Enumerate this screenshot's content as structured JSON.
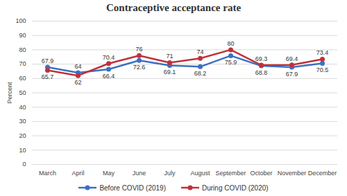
{
  "chart_data": {
    "type": "line",
    "title": "Contraceptive acceptance rate",
    "y_label": "Percent",
    "categories": [
      "March",
      "April",
      "May",
      "June",
      "July",
      "August",
      "September",
      "October",
      "November",
      "December"
    ],
    "series": [
      {
        "name": "Before COVID (2019)",
        "color": "#3b70c4",
        "marker": "circle",
        "values": [
          67.9,
          64,
          66.4,
          72.6,
          69.1,
          68.2,
          75.9,
          68.8,
          67.9,
          70.5
        ]
      },
      {
        "name": "During COVID (2020)",
        "color": "#c0313a",
        "marker": "circle",
        "values": [
          65.7,
          62,
          70.4,
          76,
          71,
          74,
          80,
          69.3,
          69.4,
          73.4
        ]
      }
    ],
    "ylim": [
      0,
      100
    ],
    "yticks": [
      0,
      10,
      20,
      30,
      40,
      50,
      60,
      70,
      80,
      90,
      100
    ],
    "grid": true,
    "data_labels": true,
    "legend": "bottom"
  }
}
